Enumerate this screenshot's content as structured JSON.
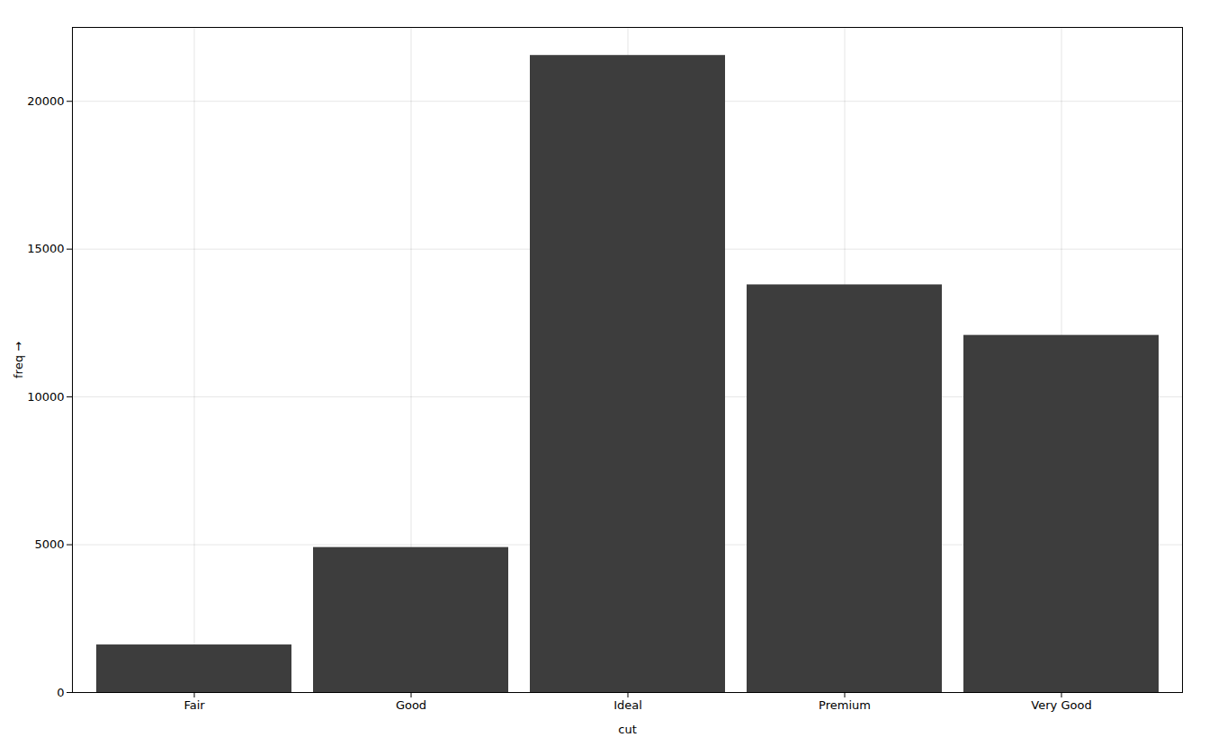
{
  "chart_data": {
    "type": "bar",
    "xlabel": "cut",
    "ylabel": "freq",
    "categories": [
      "Fair",
      "Good",
      "Ideal",
      "Premium",
      "Very Good"
    ],
    "values": [
      1610,
      4906,
      21551,
      13791,
      12082
    ],
    "color": "#3d3d3d",
    "ylim": [
      0,
      22500
    ],
    "yticks": [
      0,
      5000,
      10000,
      15000,
      20000
    ],
    "grid": true
  }
}
